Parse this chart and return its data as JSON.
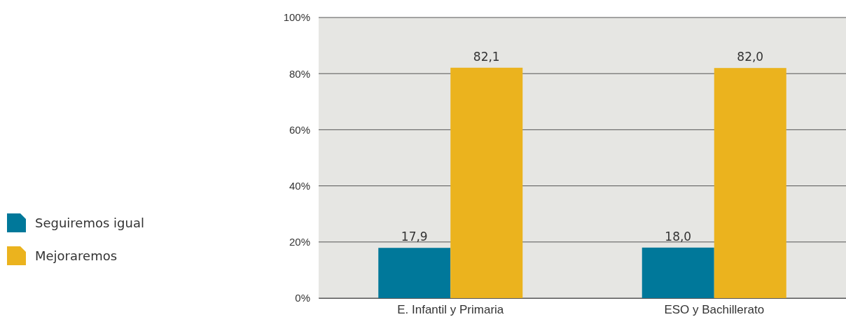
{
  "chart_data": {
    "type": "bar",
    "categories": [
      "E. Infantil  y Primaria",
      "ESO y Bachillerato"
    ],
    "series": [
      {
        "name": "Seguiremos igual",
        "color": "#00789a",
        "values": [
          17.9,
          18.0
        ],
        "value_labels": [
          "17,9",
          "18,0"
        ]
      },
      {
        "name": "Mejoraremos",
        "color": "#ebb31e",
        "values": [
          82.1,
          82.0
        ],
        "value_labels": [
          "82,1",
          "82,0"
        ]
      }
    ],
    "ylim": [
      0,
      100
    ],
    "yticks": [
      {
        "value": 0,
        "label": "0%"
      },
      {
        "value": 20,
        "label": "20%"
      },
      {
        "value": 40,
        "label": "40%"
      },
      {
        "value": 60,
        "label": "60%"
      },
      {
        "value": 80,
        "label": "80%"
      },
      {
        "value": 100,
        "label": "100%"
      }
    ],
    "grid": "y",
    "legend": "left"
  }
}
